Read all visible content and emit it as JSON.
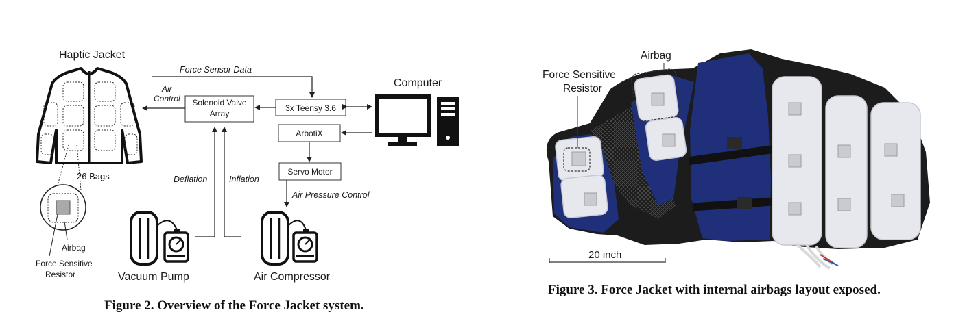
{
  "figure2": {
    "title": "Haptic Jacket",
    "bags_label": "26 Bags",
    "airbag_label": "Airbag",
    "fsr_label_line1": "Force Sensitive",
    "fsr_label_line2": "Resistor",
    "force_sensor_data": "Force Sensor Data",
    "air_control_line1": "Air",
    "air_control_line2": "Control",
    "solenoid_line1": "Solenoid Valve",
    "solenoid_line2": "Array",
    "teensy": "3x Teensy 3.6",
    "arbotix": "ArbotiX",
    "servo": "Servo Motor",
    "computer": "Computer",
    "deflation": "Deflation",
    "inflation": "Inflation",
    "air_pressure_control": "Air Pressure Control",
    "vacuum_pump": "Vacuum Pump",
    "air_compressor": "Air Compressor",
    "caption": "Figure 2. Overview of the Force Jacket system."
  },
  "figure3": {
    "airbag_label": "Airbag",
    "fsr_label_line1": "Force Sensitive",
    "fsr_label_line2": "Resistor",
    "scale_label": "20 inch",
    "caption": "Figure 3.  Force Jacket with internal airbags layout exposed."
  },
  "colors": {
    "jacket_blue": "#1f2f7a",
    "jacket_black": "#1c1c1c",
    "airbag_white": "#e6e8ee"
  }
}
